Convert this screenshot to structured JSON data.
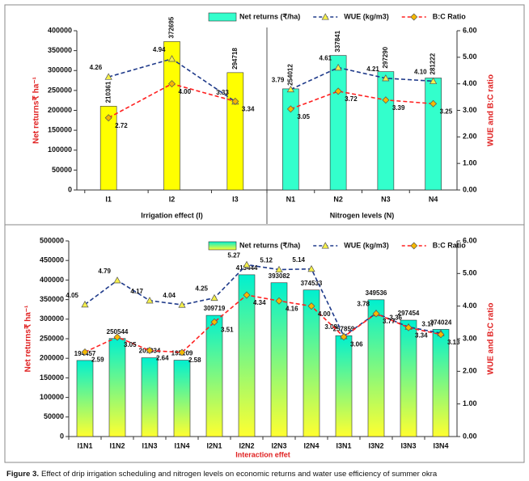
{
  "chart_data": [
    {
      "type": "bar_line",
      "groups": [
        {
          "label": "Irrigation effect (I)",
          "categories": [
            "I1",
            "I2",
            "I3"
          ],
          "color": "#ffff00"
        },
        {
          "label": "Nitrogen levels (N)",
          "categories": [
            "N1",
            "N2",
            "N3",
            "N4"
          ],
          "color": "#33ffcc"
        }
      ],
      "series": [
        {
          "name": "Net returns (₹/ha)",
          "color": "#33ffcc",
          "values": [
            210361,
            372695,
            294718,
            254012,
            337841,
            297290,
            281222
          ]
        },
        {
          "name": "WUE (kg/m3)",
          "color": "#1f3a8a",
          "axis": "y2",
          "marker": "triangle",
          "marker_color": "#f5f04a",
          "values": [
            4.26,
            4.94,
            3.33,
            3.79,
            4.61,
            4.21,
            4.1
          ],
          "value_labels": [
            "4.26",
            "4.94",
            "3.33",
            "3.79",
            "4.61",
            "4.21",
            "4.10"
          ]
        },
        {
          "name": "B:C Ratio",
          "color": "#ff2020",
          "axis": "y2",
          "marker": "diamond",
          "marker_color": "#f5b800",
          "values": [
            2.72,
            4.0,
            3.34,
            3.05,
            3.72,
            3.39,
            3.25
          ],
          "value_labels": [
            "2.72",
            "4.00",
            "3.34",
            "3.05",
            "3.72",
            "3.39",
            "3.25"
          ]
        }
      ],
      "ylim": [
        0,
        400000
      ],
      "yticks": [
        0,
        50000,
        100000,
        150000,
        200000,
        250000,
        300000,
        350000,
        400000
      ],
      "y2lim": [
        0,
        6
      ],
      "y2ticks": [
        {
          "value": 0,
          "label": "0.00"
        },
        {
          "value": 1,
          "label": "1.00"
        },
        {
          "value": 2,
          "label": "2.00"
        },
        {
          "value": 3,
          "label": "3.00"
        },
        {
          "value": 4,
          "label": "4.00"
        },
        {
          "value": 5,
          "label": "5.00"
        },
        {
          "value": 6,
          "label": "6.00"
        }
      ],
      "y_label": "Net returns₹ ha⁻¹",
      "y2_label": "WUE and B:C ratio"
    },
    {
      "type": "bar_line",
      "categories": [
        "I1N1",
        "I1N2",
        "I1N3",
        "I1N4",
        "I2N1",
        "I2N2",
        "I2N3",
        "I2N4",
        "I3N1",
        "I3N2",
        "I3N3",
        "I3N4"
      ],
      "series": [
        {
          "name": "Net returns (₹/ha)",
          "color": "#00f0d0",
          "gradient_to": "#ffff30",
          "values": [
            194457,
            250544,
            201334,
            195109,
            309719,
            413444,
            393082,
            374533,
            257859,
            349536,
            297454,
            274024
          ]
        },
        {
          "name": "WUE (kg/m3)",
          "color": "#1f3a8a",
          "axis": "y2",
          "marker": "triangle",
          "marker_color": "#f5f04a",
          "values": [
            4.05,
            4.79,
            4.17,
            4.04,
            4.25,
            5.27,
            5.12,
            5.14,
            3.08,
            3.78,
            3.36,
            3.17
          ]
        },
        {
          "name": "B:C Ratio",
          "color": "#ff2020",
          "axis": "y2",
          "marker": "diamond",
          "marker_color": "#f5b800",
          "values": [
            2.59,
            3.05,
            2.64,
            2.58,
            3.51,
            4.34,
            4.16,
            4.0,
            3.06,
            3.77,
            3.34,
            3.13
          ],
          "value_labels": [
            "2.59",
            "3.05",
            "2.64",
            "2.58",
            "3.51",
            "4.34",
            "4.16",
            "4.00",
            "3.06",
            "3.77",
            "3.34",
            "3.13"
          ]
        }
      ],
      "ylim": [
        0,
        500000
      ],
      "yticks": [
        0,
        50000,
        100000,
        150000,
        200000,
        250000,
        300000,
        350000,
        400000,
        450000,
        500000
      ],
      "y2lim": [
        0,
        6
      ],
      "y2ticks": [
        {
          "value": 0,
          "label": "0.00"
        },
        {
          "value": 1,
          "label": "1.00"
        },
        {
          "value": 2,
          "label": "2.00"
        },
        {
          "value": 3,
          "label": "3.00"
        },
        {
          "value": 4,
          "label": "4.00"
        },
        {
          "value": 5,
          "label": "5.00"
        },
        {
          "value": 6,
          "label": "6.00"
        }
      ],
      "x_label": "Interaction effet",
      "y_label": "Net returns₹ ha⁻¹",
      "y2_label": "WUE and B:C ratio"
    }
  ],
  "caption": {
    "label": "Figure 3.",
    "text": "Effect of drip irrigation scheduling and nitrogen levels on economic returns and water use efficiency of summer okra"
  }
}
